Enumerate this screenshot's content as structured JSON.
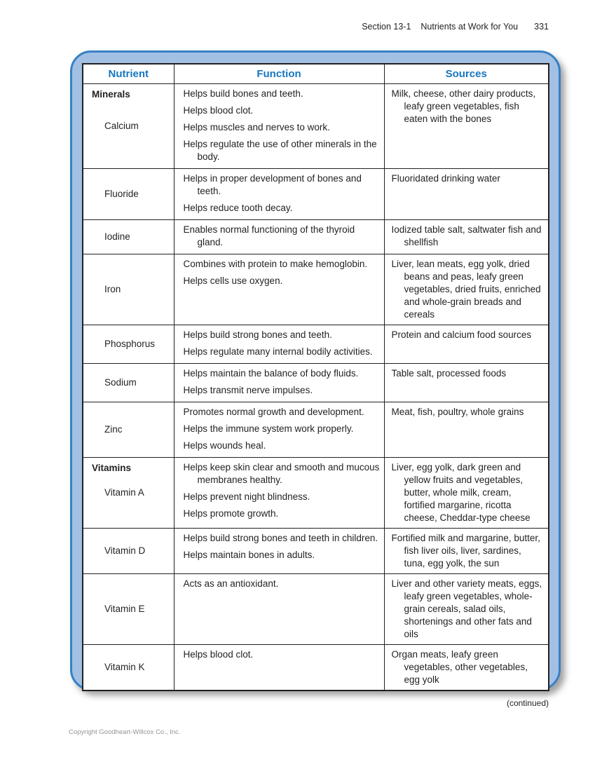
{
  "header": {
    "section": "Section 13-1",
    "title": "Nutrients at Work for You",
    "page_number": "331"
  },
  "footer": {
    "continued": "(continued)",
    "copyright": "Copyright Goodheart-Willcox Co., Inc."
  },
  "colors": {
    "panel_fill": "#a2c0e4",
    "panel_border": "#3880c4",
    "header_text_blue": "#1576bf",
    "table_border": "#231f20",
    "copyright_gray": "#939598"
  },
  "table": {
    "columns": [
      "Nutrient",
      "Function",
      "Sources"
    ],
    "rows": [
      {
        "category": "Minerals",
        "nutrient": "Calcium",
        "functions": [
          "Helps build bones and teeth.",
          "Helps blood clot.",
          "Helps muscles and nerves to work.",
          "Helps regulate the use of other minerals in the body."
        ],
        "sources": "Milk, cheese, other dairy products, leafy green vegetables, fish eaten with the bones"
      },
      {
        "nutrient": "Fluoride",
        "functions": [
          "Helps in proper development of bones and teeth.",
          "Helps reduce tooth decay."
        ],
        "sources": "Fluoridated drinking water"
      },
      {
        "nutrient": "Iodine",
        "functions": [
          "Enables normal functioning of the thyroid gland."
        ],
        "sources": "Iodized table salt, saltwater fish and shellfish"
      },
      {
        "nutrient": "Iron",
        "functions": [
          "Combines with protein to make hemoglobin.",
          "Helps cells use oxygen."
        ],
        "sources": "Liver, lean meats, egg yolk, dried beans and peas, leafy green vegetables, dried fruits, enriched and whole-grain breads and cereals"
      },
      {
        "nutrient": "Phosphorus",
        "functions": [
          "Helps build strong bones and teeth.",
          "Helps regulate many internal bodily activities."
        ],
        "sources": "Protein and calcium food sources"
      },
      {
        "nutrient": "Sodium",
        "functions": [
          "Helps maintain the balance of body fluids.",
          "Helps transmit nerve impulses."
        ],
        "sources": "Table salt, processed foods"
      },
      {
        "nutrient": "Zinc",
        "functions": [
          "Promotes normal growth and development.",
          "Helps the immune system work properly.",
          "Helps wounds heal."
        ],
        "sources": "Meat, fish, poultry, whole grains"
      },
      {
        "category": "Vitamins",
        "nutrient": "Vitamin A",
        "functions": [
          "Helps keep skin clear and smooth and mucous membranes healthy.",
          "Helps prevent night blindness.",
          "Helps promote growth."
        ],
        "sources": "Liver, egg yolk, dark green and yellow fruits and vegetables, butter, whole milk, cream, fortified margarine, ricotta cheese, Cheddar-type cheese"
      },
      {
        "nutrient": "Vitamin D",
        "functions": [
          "Helps build strong bones and teeth in children.",
          "Helps maintain bones in adults."
        ],
        "sources": "Fortified milk and margarine, butter, fish liver oils, liver, sardines, tuna, egg yolk, the sun"
      },
      {
        "nutrient": "Vitamin E",
        "functions": [
          "Acts as an antioxidant."
        ],
        "sources": "Liver and other variety meats, eggs, leafy green vegetables, whole-grain cereals, salad oils, shortenings and other fats and oils"
      },
      {
        "nutrient": "Vitamin K",
        "functions": [
          "Helps blood clot."
        ],
        "sources": "Organ meats, leafy green vegetables, other vegetables, egg yolk"
      }
    ]
  }
}
